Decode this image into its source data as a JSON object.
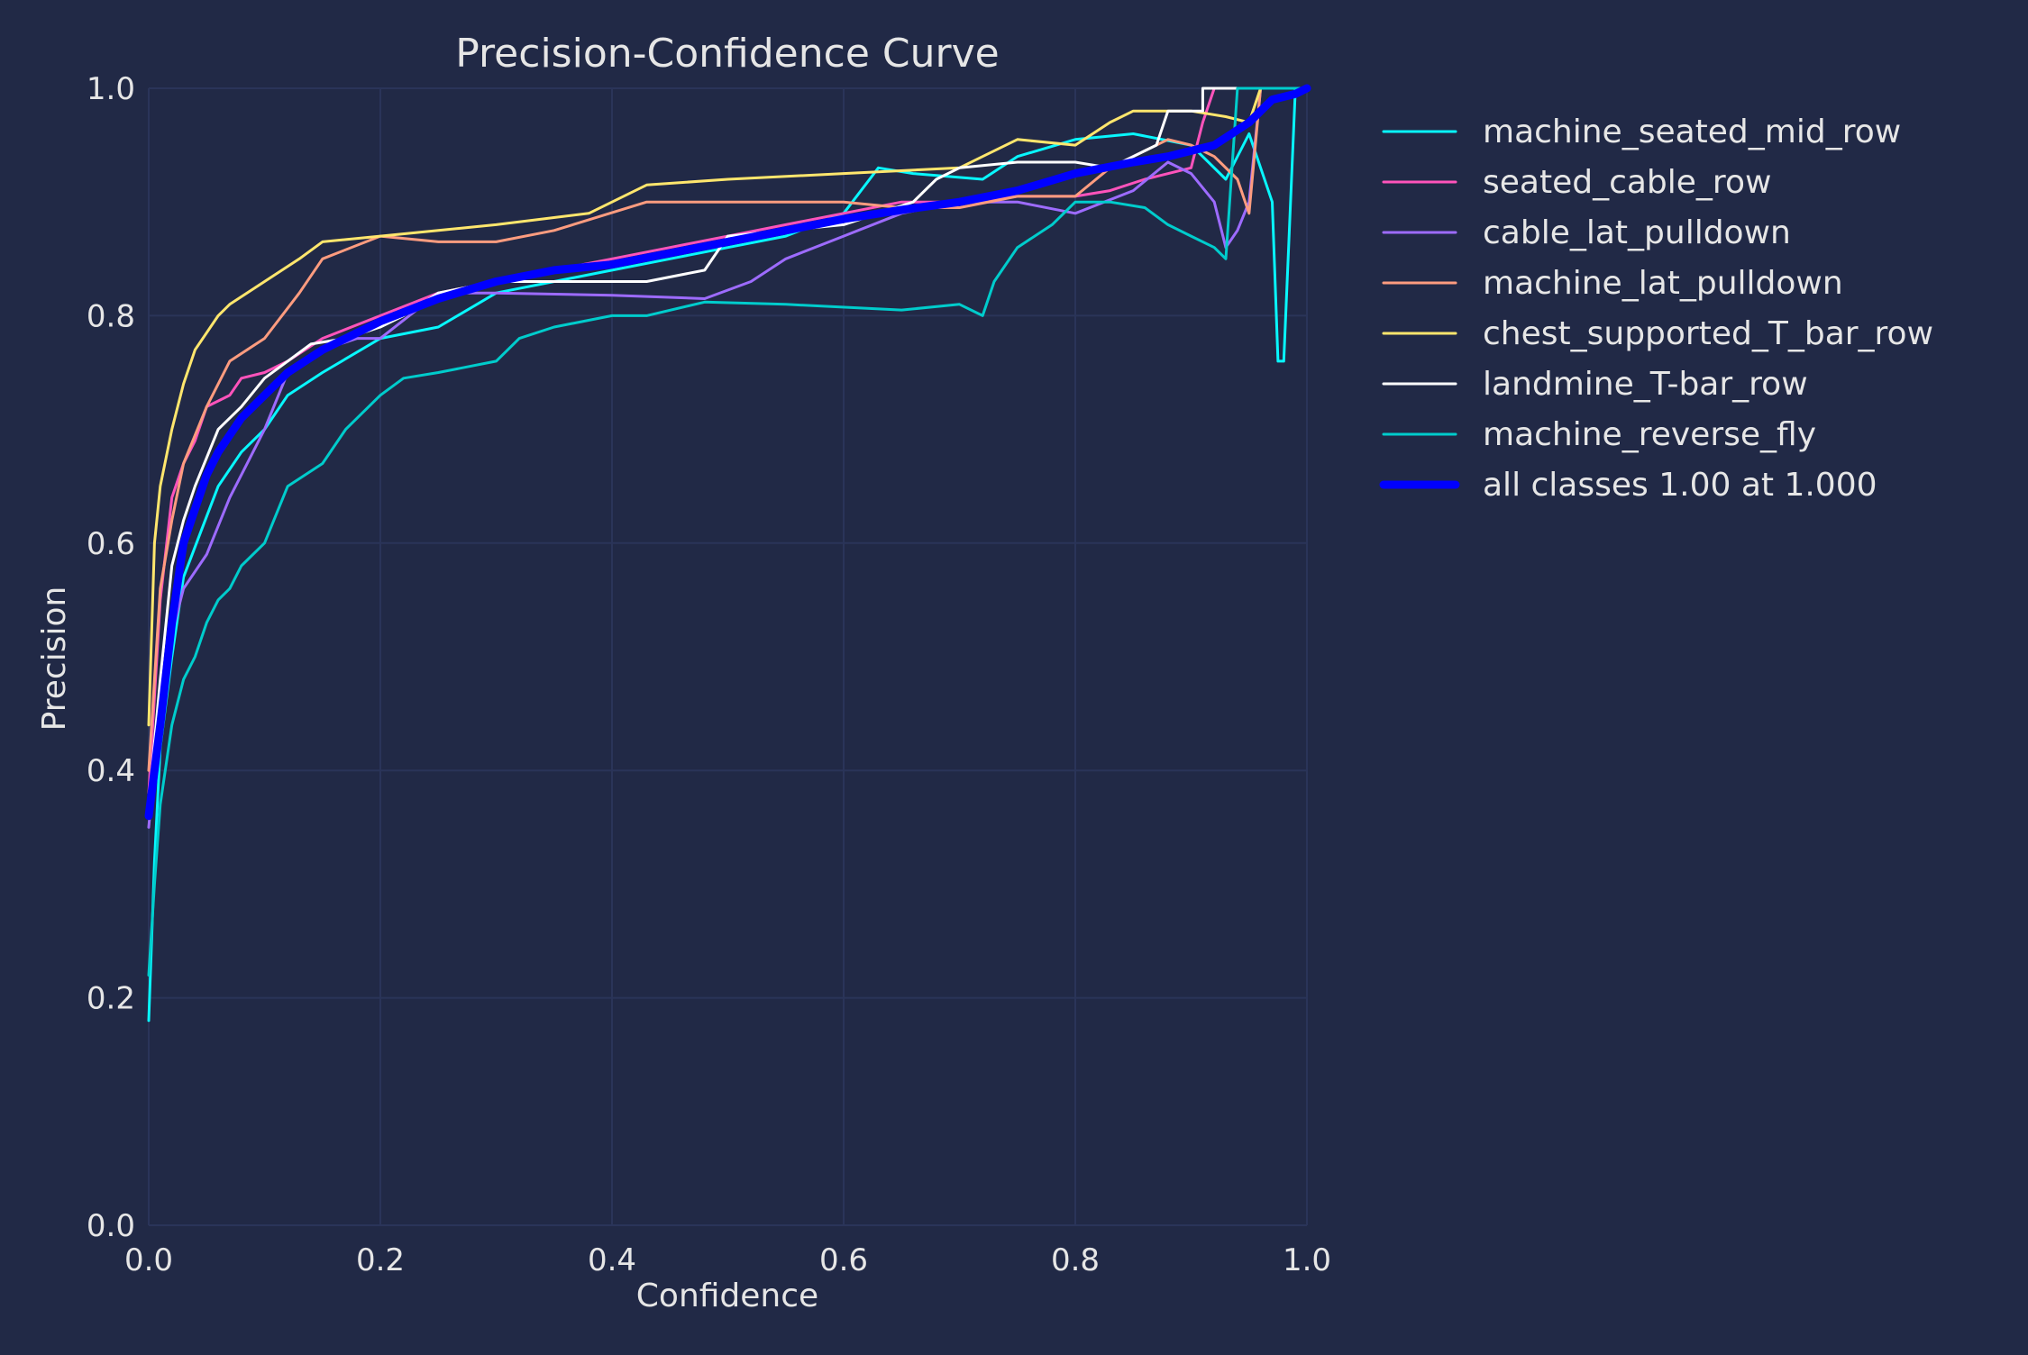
{
  "chart_data": {
    "type": "line",
    "title": "Precision-Confidence Curve",
    "xlabel": "Confidence",
    "ylabel": "Precision",
    "xlim": [
      0,
      1
    ],
    "ylim": [
      0,
      1
    ],
    "xticks": [
      "0.0",
      "0.2",
      "0.4",
      "0.6",
      "0.8",
      "1.0"
    ],
    "yticks": [
      "0.0",
      "0.2",
      "0.4",
      "0.6",
      "0.8",
      "1.0"
    ],
    "grid": true,
    "legend_position": "right",
    "colors": {
      "background": "#212946",
      "grid": "#2A3459",
      "text": "#E6E6E6"
    },
    "series": [
      {
        "name": "machine_seated_mid_row",
        "color": "#08F7FE",
        "points": [
          [
            0.0,
            0.18
          ],
          [
            0.005,
            0.32
          ],
          [
            0.01,
            0.42
          ],
          [
            0.02,
            0.5
          ],
          [
            0.03,
            0.57
          ],
          [
            0.045,
            0.61
          ],
          [
            0.06,
            0.65
          ],
          [
            0.08,
            0.68
          ],
          [
            0.1,
            0.7
          ],
          [
            0.12,
            0.73
          ],
          [
            0.15,
            0.75
          ],
          [
            0.2,
            0.78
          ],
          [
            0.25,
            0.79
          ],
          [
            0.3,
            0.82
          ],
          [
            0.35,
            0.83
          ],
          [
            0.4,
            0.84
          ],
          [
            0.45,
            0.85
          ],
          [
            0.5,
            0.86
          ],
          [
            0.55,
            0.87
          ],
          [
            0.6,
            0.89
          ],
          [
            0.63,
            0.93
          ],
          [
            0.66,
            0.925
          ],
          [
            0.72,
            0.92
          ],
          [
            0.75,
            0.94
          ],
          [
            0.8,
            0.955
          ],
          [
            0.85,
            0.96
          ],
          [
            0.9,
            0.95
          ],
          [
            0.93,
            0.92
          ],
          [
            0.95,
            0.96
          ],
          [
            0.97,
            0.9
          ],
          [
            0.975,
            0.76
          ],
          [
            0.98,
            0.76
          ],
          [
            0.99,
            1.0
          ],
          [
            1.0,
            1.0
          ]
        ]
      },
      {
        "name": "seated_cable_row",
        "color": "#FE53BB",
        "points": [
          [
            0.0,
            0.38
          ],
          [
            0.01,
            0.55
          ],
          [
            0.02,
            0.64
          ],
          [
            0.03,
            0.67
          ],
          [
            0.04,
            0.69
          ],
          [
            0.05,
            0.72
          ],
          [
            0.07,
            0.73
          ],
          [
            0.08,
            0.745
          ],
          [
            0.1,
            0.75
          ],
          [
            0.12,
            0.76
          ],
          [
            0.15,
            0.78
          ],
          [
            0.2,
            0.8
          ],
          [
            0.25,
            0.82
          ],
          [
            0.3,
            0.83
          ],
          [
            0.35,
            0.84
          ],
          [
            0.4,
            0.85
          ],
          [
            0.45,
            0.86
          ],
          [
            0.5,
            0.87
          ],
          [
            0.55,
            0.88
          ],
          [
            0.6,
            0.89
          ],
          [
            0.65,
            0.9
          ],
          [
            0.7,
            0.9
          ],
          [
            0.75,
            0.905
          ],
          [
            0.8,
            0.905
          ],
          [
            0.83,
            0.91
          ],
          [
            0.86,
            0.92
          ],
          [
            0.9,
            0.93
          ],
          [
            0.91,
            0.97
          ],
          [
            0.92,
            1.0
          ],
          [
            1.0,
            1.0
          ]
        ]
      },
      {
        "name": "cable_lat_pulldown",
        "color": "#9D6BFF",
        "points": [
          [
            0.0,
            0.35
          ],
          [
            0.01,
            0.46
          ],
          [
            0.02,
            0.52
          ],
          [
            0.03,
            0.56
          ],
          [
            0.05,
            0.59
          ],
          [
            0.07,
            0.64
          ],
          [
            0.08,
            0.66
          ],
          [
            0.1,
            0.7
          ],
          [
            0.12,
            0.75
          ],
          [
            0.15,
            0.77
          ],
          [
            0.18,
            0.78
          ],
          [
            0.2,
            0.78
          ],
          [
            0.25,
            0.82
          ],
          [
            0.3,
            0.82
          ],
          [
            0.4,
            0.818
          ],
          [
            0.48,
            0.815
          ],
          [
            0.52,
            0.83
          ],
          [
            0.55,
            0.85
          ],
          [
            0.6,
            0.87
          ],
          [
            0.65,
            0.89
          ],
          [
            0.7,
            0.9
          ],
          [
            0.75,
            0.9
          ],
          [
            0.8,
            0.89
          ],
          [
            0.85,
            0.91
          ],
          [
            0.88,
            0.935
          ],
          [
            0.9,
            0.925
          ],
          [
            0.92,
            0.9
          ],
          [
            0.93,
            0.86
          ],
          [
            0.94,
            0.875
          ],
          [
            0.95,
            0.9
          ],
          [
            0.96,
            1.0
          ],
          [
            1.0,
            1.0
          ]
        ]
      },
      {
        "name": "machine_lat_pulldown",
        "color": "#FE9C7F",
        "points": [
          [
            0.0,
            0.4
          ],
          [
            0.01,
            0.56
          ],
          [
            0.02,
            0.62
          ],
          [
            0.03,
            0.67
          ],
          [
            0.05,
            0.72
          ],
          [
            0.07,
            0.76
          ],
          [
            0.1,
            0.78
          ],
          [
            0.13,
            0.82
          ],
          [
            0.15,
            0.85
          ],
          [
            0.2,
            0.87
          ],
          [
            0.25,
            0.865
          ],
          [
            0.3,
            0.865
          ],
          [
            0.35,
            0.875
          ],
          [
            0.43,
            0.9
          ],
          [
            0.5,
            0.9
          ],
          [
            0.6,
            0.9
          ],
          [
            0.65,
            0.895
          ],
          [
            0.7,
            0.895
          ],
          [
            0.75,
            0.905
          ],
          [
            0.8,
            0.905
          ],
          [
            0.83,
            0.93
          ],
          [
            0.85,
            0.94
          ],
          [
            0.88,
            0.955
          ],
          [
            0.9,
            0.95
          ],
          [
            0.92,
            0.94
          ],
          [
            0.94,
            0.92
          ],
          [
            0.95,
            0.89
          ],
          [
            0.96,
            1.0
          ],
          [
            1.0,
            1.0
          ]
        ]
      },
      {
        "name": "chest_supported_T_bar_row",
        "color": "#FFE66D",
        "points": [
          [
            0.0,
            0.44
          ],
          [
            0.005,
            0.6
          ],
          [
            0.01,
            0.65
          ],
          [
            0.02,
            0.7
          ],
          [
            0.03,
            0.74
          ],
          [
            0.04,
            0.77
          ],
          [
            0.05,
            0.785
          ],
          [
            0.06,
            0.8
          ],
          [
            0.07,
            0.81
          ],
          [
            0.1,
            0.83
          ],
          [
            0.13,
            0.85
          ],
          [
            0.15,
            0.865
          ],
          [
            0.2,
            0.87
          ],
          [
            0.25,
            0.875
          ],
          [
            0.3,
            0.88
          ],
          [
            0.38,
            0.89
          ],
          [
            0.43,
            0.915
          ],
          [
            0.5,
            0.92
          ],
          [
            0.6,
            0.925
          ],
          [
            0.7,
            0.93
          ],
          [
            0.72,
            0.94
          ],
          [
            0.75,
            0.955
          ],
          [
            0.8,
            0.95
          ],
          [
            0.83,
            0.97
          ],
          [
            0.85,
            0.98
          ],
          [
            0.9,
            0.98
          ],
          [
            0.93,
            0.975
          ],
          [
            0.95,
            0.97
          ],
          [
            0.96,
            1.0
          ],
          [
            1.0,
            1.0
          ]
        ]
      },
      {
        "name": "landmine_T-bar_row",
        "color": "#FFFFFF",
        "points": [
          [
            0.0,
            0.37
          ],
          [
            0.01,
            0.48
          ],
          [
            0.02,
            0.58
          ],
          [
            0.03,
            0.62
          ],
          [
            0.04,
            0.65
          ],
          [
            0.06,
            0.7
          ],
          [
            0.08,
            0.72
          ],
          [
            0.1,
            0.745
          ],
          [
            0.12,
            0.76
          ],
          [
            0.14,
            0.775
          ],
          [
            0.17,
            0.78
          ],
          [
            0.2,
            0.79
          ],
          [
            0.22,
            0.8
          ],
          [
            0.25,
            0.82
          ],
          [
            0.3,
            0.83
          ],
          [
            0.35,
            0.83
          ],
          [
            0.43,
            0.83
          ],
          [
            0.48,
            0.84
          ],
          [
            0.5,
            0.87
          ],
          [
            0.6,
            0.88
          ],
          [
            0.66,
            0.9
          ],
          [
            0.68,
            0.92
          ],
          [
            0.7,
            0.93
          ],
          [
            0.75,
            0.935
          ],
          [
            0.8,
            0.935
          ],
          [
            0.83,
            0.93
          ],
          [
            0.87,
            0.95
          ],
          [
            0.88,
            0.98
          ],
          [
            0.91,
            0.98
          ],
          [
            0.91,
            1.0
          ],
          [
            1.0,
            1.0
          ]
        ]
      },
      {
        "name": "machine_reverse_fly",
        "color": "#00CCCC",
        "points": [
          [
            0.0,
            0.22
          ],
          [
            0.005,
            0.3
          ],
          [
            0.01,
            0.37
          ],
          [
            0.02,
            0.44
          ],
          [
            0.03,
            0.48
          ],
          [
            0.04,
            0.5
          ],
          [
            0.05,
            0.53
          ],
          [
            0.06,
            0.55
          ],
          [
            0.07,
            0.56
          ],
          [
            0.08,
            0.58
          ],
          [
            0.1,
            0.6
          ],
          [
            0.12,
            0.65
          ],
          [
            0.15,
            0.67
          ],
          [
            0.17,
            0.7
          ],
          [
            0.2,
            0.73
          ],
          [
            0.22,
            0.745
          ],
          [
            0.25,
            0.75
          ],
          [
            0.3,
            0.76
          ],
          [
            0.32,
            0.78
          ],
          [
            0.35,
            0.79
          ],
          [
            0.4,
            0.8
          ],
          [
            0.43,
            0.8
          ],
          [
            0.48,
            0.812
          ],
          [
            0.55,
            0.81
          ],
          [
            0.65,
            0.805
          ],
          [
            0.7,
            0.81
          ],
          [
            0.72,
            0.8
          ],
          [
            0.73,
            0.83
          ],
          [
            0.75,
            0.86
          ],
          [
            0.78,
            0.88
          ],
          [
            0.8,
            0.9
          ],
          [
            0.83,
            0.9
          ],
          [
            0.86,
            0.895
          ],
          [
            0.88,
            0.88
          ],
          [
            0.9,
            0.87
          ],
          [
            0.92,
            0.86
          ],
          [
            0.93,
            0.85
          ],
          [
            0.94,
            1.0
          ],
          [
            1.0,
            1.0
          ]
        ]
      },
      {
        "name": "all classes 1.00 at 1.000",
        "color": "#0000FF",
        "bold": true,
        "points": [
          [
            0.0,
            0.36
          ],
          [
            0.01,
            0.44
          ],
          [
            0.02,
            0.53
          ],
          [
            0.03,
            0.6
          ],
          [
            0.04,
            0.63
          ],
          [
            0.05,
            0.66
          ],
          [
            0.06,
            0.68
          ],
          [
            0.08,
            0.71
          ],
          [
            0.1,
            0.73
          ],
          [
            0.12,
            0.75
          ],
          [
            0.15,
            0.77
          ],
          [
            0.2,
            0.795
          ],
          [
            0.25,
            0.815
          ],
          [
            0.3,
            0.83
          ],
          [
            0.35,
            0.84
          ],
          [
            0.4,
            0.845
          ],
          [
            0.45,
            0.855
          ],
          [
            0.5,
            0.865
          ],
          [
            0.55,
            0.875
          ],
          [
            0.6,
            0.885
          ],
          [
            0.65,
            0.893
          ],
          [
            0.7,
            0.9
          ],
          [
            0.75,
            0.91
          ],
          [
            0.8,
            0.925
          ],
          [
            0.85,
            0.935
          ],
          [
            0.88,
            0.94
          ],
          [
            0.9,
            0.945
          ],
          [
            0.92,
            0.95
          ],
          [
            0.95,
            0.97
          ],
          [
            0.97,
            0.99
          ],
          [
            0.99,
            0.995
          ],
          [
            1.0,
            1.0
          ]
        ]
      }
    ]
  }
}
